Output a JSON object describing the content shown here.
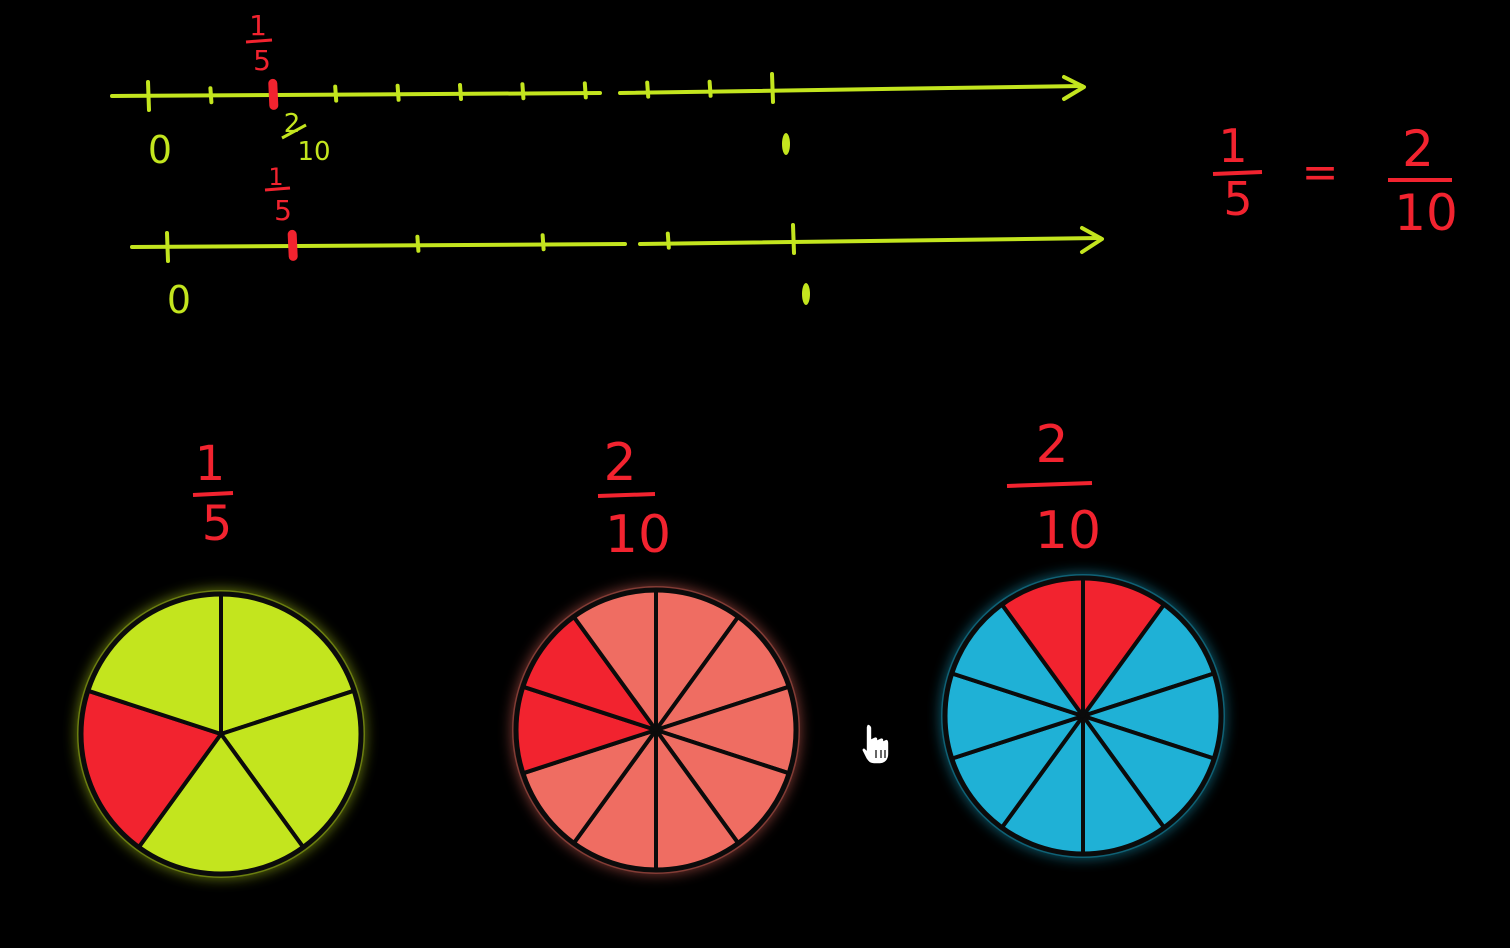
{
  "colors": {
    "background": "#000000",
    "chalk_green": "#c3e51e",
    "chalk_red": "#f2232f",
    "salmon": "#ef6d62",
    "cyan": "#1fb1d6",
    "outline": "#0b0b0b"
  },
  "number_lines": [
    {
      "zero_label": "0",
      "marked_fraction": {
        "numerator": "1",
        "denominator": "5"
      },
      "alt_fraction": {
        "numerator": "2",
        "denominator": "10"
      },
      "tick_count": 11,
      "highlighted_tick": 2
    },
    {
      "zero_label": "0",
      "marked_fraction": {
        "numerator": "1",
        "denominator": "5"
      },
      "tick_count": 6,
      "highlighted_tick": 1
    }
  ],
  "equation": {
    "left": {
      "numerator": "1",
      "denominator": "5"
    },
    "sign": "=",
    "right": {
      "numerator": "2",
      "denominator": "10"
    }
  },
  "pies": [
    {
      "label": {
        "numerator": "1",
        "denominator": "5"
      },
      "slices": 5,
      "shaded_slices": [
        3
      ],
      "base_color": "chalk_green",
      "shade_color": "chalk_red"
    },
    {
      "label": {
        "numerator": "2",
        "denominator": "10"
      },
      "slices": 10,
      "shaded_slices": [
        7,
        8
      ],
      "base_color": "salmon",
      "shade_color": "chalk_red"
    },
    {
      "label": {
        "numerator": "2",
        "denominator": "10"
      },
      "slices": 10,
      "shaded_slices": [
        0,
        9
      ],
      "base_color": "cyan",
      "shade_color": "chalk_red"
    }
  ],
  "cursor": {
    "icon": "hand-pointer-icon"
  }
}
